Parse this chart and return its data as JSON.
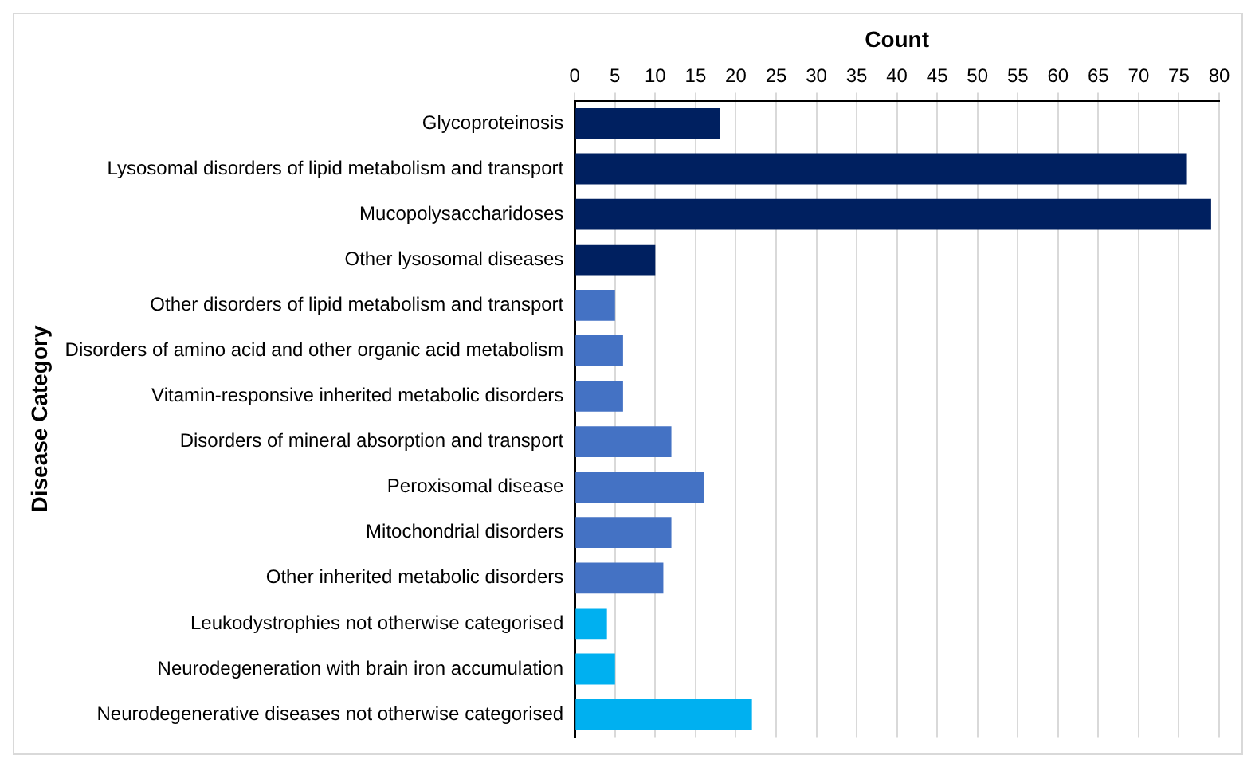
{
  "chart_data": {
    "type": "bar",
    "orientation": "horizontal",
    "xlabel": "Count",
    "ylabel": "Disease Category",
    "categories": [
      "Glycoproteinosis",
      "Lysosomal disorders of lipid metabolism and transport",
      "Mucopolysaccharidoses",
      "Other lysosomal diseases",
      "Other disorders of lipid metabolism and transport",
      "Disorders of amino acid and other organic acid metabolism",
      "Vitamin-responsive inherited metabolic disorders",
      "Disorders of mineral absorption and transport",
      "Peroxisomal disease",
      "Mitochondrial disorders",
      "Other inherited metabolic disorders",
      "Leukodystrophies not otherwise categorised",
      "Neurodegeneration with brain iron accumulation",
      "Neurodegenerative diseases not otherwise categorised"
    ],
    "values": [
      18,
      76,
      79,
      10,
      5,
      6,
      6,
      12,
      16,
      12,
      11,
      4,
      5,
      22
    ],
    "colors": [
      "#002060",
      "#002060",
      "#002060",
      "#002060",
      "#4472c4",
      "#4472c4",
      "#4472c4",
      "#4472c4",
      "#4472c4",
      "#4472c4",
      "#4472c4",
      "#00b0f0",
      "#00b0f0",
      "#00b0f0"
    ],
    "xlim": [
      0,
      80
    ],
    "xticks": [
      0,
      5,
      10,
      15,
      20,
      25,
      30,
      35,
      40,
      45,
      50,
      55,
      60,
      65,
      70,
      75,
      80
    ],
    "grid": "x"
  }
}
